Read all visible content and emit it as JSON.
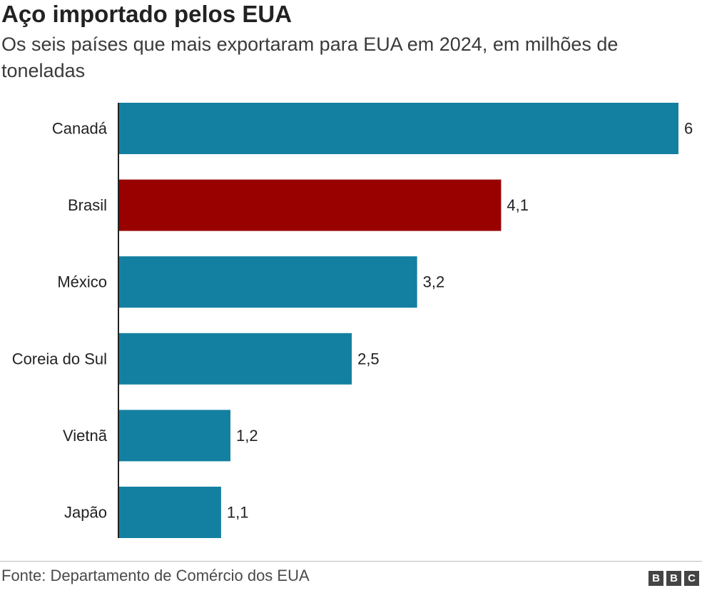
{
  "header": {
    "title": "Aço importado pelos EUA",
    "subtitle": "Os seis países que mais exportaram para EUA em 2024, em milhões de toneladas"
  },
  "footer": {
    "source": "Fonte: Departamento de Comércio dos EUA",
    "logo_letters": [
      "B",
      "B",
      "C"
    ]
  },
  "colors": {
    "default_bar": "#1380A1",
    "highlight_bar": "#990000"
  },
  "chart_data": {
    "type": "bar",
    "orientation": "horizontal",
    "title": "Aço importado pelos EUA",
    "subtitle": "Os seis países que mais exportaram para EUA em 2024, em milhões de toneladas",
    "xlabel": "",
    "ylabel": "",
    "xlim": [
      0,
      6
    ],
    "grid": false,
    "categories": [
      "Canadá",
      "Brasil",
      "México",
      "Coreia do Sul",
      "Vietnã",
      "Japão"
    ],
    "values": [
      6,
      4.1,
      3.2,
      2.5,
      1.2,
      1.1
    ],
    "value_labels": [
      "6",
      "4,1",
      "3,2",
      "2,5",
      "1,2",
      "1,1"
    ],
    "highlighted": [
      "Brasil"
    ]
  }
}
